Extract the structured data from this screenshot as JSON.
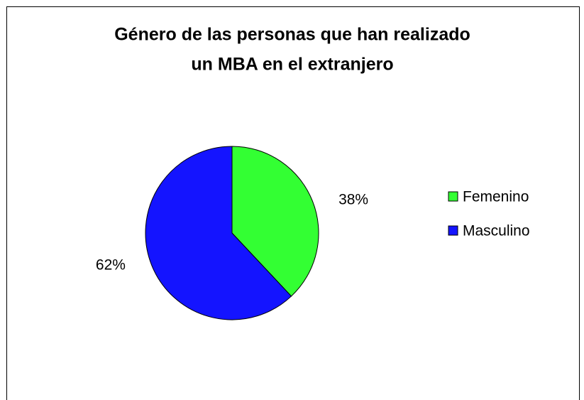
{
  "chart_data": {
    "type": "pie",
    "title": [
      "Género de las personas que han realizado",
      "un MBA en el extranjero"
    ],
    "categories": [
      "Femenino",
      "Masculino"
    ],
    "values": [
      38,
      62
    ],
    "value_labels": [
      "38%",
      "62%"
    ],
    "colors": [
      "#33ff33",
      "#1414ff"
    ],
    "legend": "right"
  }
}
